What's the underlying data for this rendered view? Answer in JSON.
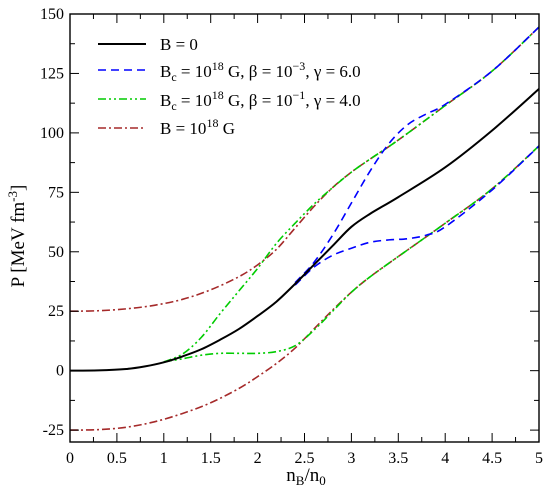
{
  "chart_data": {
    "type": "line",
    "xlabel": "n_B/n_0",
    "ylabel": "P [MeV fm^-3]",
    "xlim": [
      0,
      5
    ],
    "ylim": [
      -30,
      150
    ],
    "xticks": [
      "0",
      "0.5",
      "1",
      "1.5",
      "2",
      "2.5",
      "3",
      "3.5",
      "4",
      "4.5",
      "5"
    ],
    "yticks": [
      "-25",
      "0",
      "25",
      "50",
      "75",
      "100",
      "125",
      "150"
    ],
    "grid": false,
    "legend_position": "top-left",
    "series": [
      {
        "name": "B = 0",
        "color": "#000000",
        "dash": "solid",
        "points": [
          [
            0,
            0
          ],
          [
            0.3,
            0.1
          ],
          [
            0.6,
            0.7
          ],
          [
            0.8,
            1.8
          ],
          [
            1.0,
            3.5
          ],
          [
            1.2,
            6.0
          ],
          [
            1.4,
            9.0
          ],
          [
            1.6,
            13.0
          ],
          [
            1.8,
            17.5
          ],
          [
            2.0,
            23.0
          ],
          [
            2.2,
            29.0
          ],
          [
            2.4,
            36.5
          ],
          [
            2.6,
            44.5
          ],
          [
            2.8,
            52.5
          ],
          [
            3.0,
            60.5
          ],
          [
            3.2,
            66.0
          ],
          [
            3.5,
            73.0
          ],
          [
            4.0,
            85.5
          ],
          [
            4.5,
            101.0
          ],
          [
            5.0,
            118.5
          ]
        ]
      },
      {
        "name": "B_c = 10^18 G, β = 10^-3, γ = 6.0",
        "color": "#0000ff",
        "dash": "dashed",
        "upper": [
          [
            2.4,
            37.0
          ],
          [
            2.6,
            45.5
          ],
          [
            2.8,
            57.0
          ],
          [
            3.0,
            70.5
          ],
          [
            3.2,
            84.0
          ],
          [
            3.4,
            95.5
          ],
          [
            3.6,
            103.5
          ],
          [
            3.8,
            108.0
          ],
          [
            4.0,
            112.0
          ],
          [
            4.5,
            126.0
          ],
          [
            5.0,
            144.5
          ]
        ],
        "lower": [
          [
            2.4,
            36.0
          ],
          [
            2.6,
            43.5
          ],
          [
            2.8,
            48.5
          ],
          [
            3.0,
            51.5
          ],
          [
            3.2,
            54.0
          ],
          [
            3.4,
            55.0
          ],
          [
            3.6,
            55.5
          ],
          [
            3.8,
            57.0
          ],
          [
            4.0,
            60.5
          ],
          [
            4.5,
            76.0
          ],
          [
            5.0,
            94.5
          ]
        ]
      },
      {
        "name": "B_c = 10^18 G, β = 10^-1, γ = 4.0",
        "color": "#00cc00",
        "dash": "dash-dot",
        "upper": [
          [
            1.0,
            3.7
          ],
          [
            1.2,
            7.0
          ],
          [
            1.4,
            14.0
          ],
          [
            1.6,
            24.0
          ],
          [
            1.8,
            33.5
          ],
          [
            2.0,
            43.0
          ],
          [
            2.2,
            53.5
          ],
          [
            2.4,
            62.0
          ],
          [
            2.6,
            70.0
          ],
          [
            2.8,
            77.0
          ],
          [
            3.0,
            83.5
          ],
          [
            3.2,
            89.0
          ],
          [
            3.5,
            97.0
          ],
          [
            4.0,
            111.5
          ],
          [
            4.5,
            126.0
          ],
          [
            5.0,
            144.5
          ]
        ],
        "lower": [
          [
            1.0,
            3.7
          ],
          [
            1.2,
            5.0
          ],
          [
            1.4,
            6.5
          ],
          [
            1.6,
            7.3
          ],
          [
            1.8,
            7.3
          ],
          [
            2.0,
            7.3
          ],
          [
            2.2,
            8.0
          ],
          [
            2.4,
            10.5
          ],
          [
            2.6,
            17.0
          ],
          [
            2.8,
            25.0
          ],
          [
            3.0,
            33.0
          ],
          [
            3.2,
            39.5
          ],
          [
            3.5,
            48.0
          ],
          [
            4.0,
            62.0
          ],
          [
            4.5,
            76.5
          ],
          [
            5.0,
            94.5
          ]
        ]
      },
      {
        "name": "B = 10^18 G",
        "color": "#a52a2a",
        "dash": "dash-dot",
        "upper": [
          [
            0,
            25.0
          ],
          [
            0.3,
            25.2
          ],
          [
            0.6,
            26.0
          ],
          [
            0.9,
            27.5
          ],
          [
            1.2,
            30.0
          ],
          [
            1.5,
            34.0
          ],
          [
            1.8,
            39.5
          ],
          [
            2.0,
            44.5
          ],
          [
            2.2,
            51.0
          ],
          [
            2.4,
            60.0
          ],
          [
            2.6,
            69.0
          ],
          [
            2.8,
            77.0
          ],
          [
            3.0,
            83.5
          ],
          [
            3.2,
            89.0
          ],
          [
            3.5,
            97.0
          ],
          [
            4.0,
            111.5
          ],
          [
            4.5,
            126.0
          ],
          [
            5.0,
            144.5
          ]
        ],
        "lower": [
          [
            0,
            -25.0
          ],
          [
            0.3,
            -24.8
          ],
          [
            0.6,
            -23.8
          ],
          [
            0.9,
            -21.5
          ],
          [
            1.2,
            -18.0
          ],
          [
            1.5,
            -13.5
          ],
          [
            1.8,
            -7.5
          ],
          [
            2.0,
            -2.5
          ],
          [
            2.2,
            3.0
          ],
          [
            2.4,
            9.5
          ],
          [
            2.6,
            17.5
          ],
          [
            2.8,
            25.5
          ],
          [
            3.0,
            33.0
          ],
          [
            3.2,
            39.5
          ],
          [
            3.5,
            48.0
          ],
          [
            4.0,
            62.0
          ],
          [
            4.5,
            76.5
          ],
          [
            5.0,
            94.5
          ]
        ]
      }
    ]
  }
}
